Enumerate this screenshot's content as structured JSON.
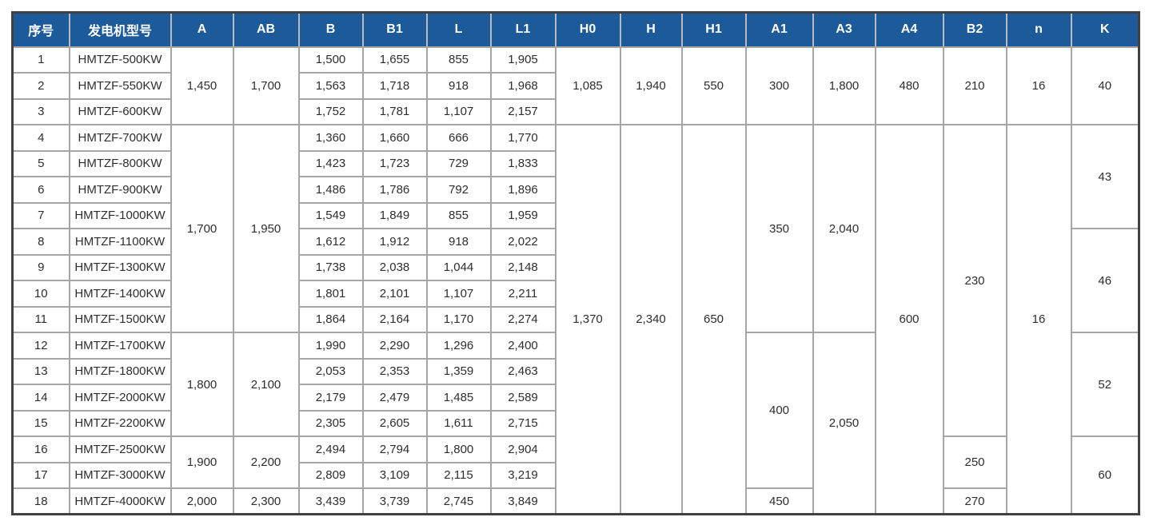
{
  "colors": {
    "header_bg": "#1d5a9a",
    "header_text": "#ffffff",
    "outer_border": "#414141",
    "grid_line": "#a6a6a6",
    "body_text": "#2e2e2e"
  },
  "table": {
    "header": {
      "columns": [
        "序号",
        "发电机型号",
        "A",
        "AB",
        "B",
        "B1",
        "L",
        "L1",
        "H0",
        "H",
        "H1",
        "A1",
        "A3",
        "A4",
        "B2",
        "n",
        "K"
      ]
    },
    "rows": [
      {
        "cells": [
          {
            "v": "1"
          },
          {
            "v": "HMTZF-500KW"
          },
          {
            "v": "1,450",
            "rs": 3
          },
          {
            "v": "1,700",
            "rs": 3
          },
          {
            "v": "1,500"
          },
          {
            "v": "1,655"
          },
          {
            "v": "855"
          },
          {
            "v": "1,905"
          },
          {
            "v": "1,085",
            "rs": 3
          },
          {
            "v": "1,940",
            "rs": 3
          },
          {
            "v": "550",
            "rs": 3
          },
          {
            "v": "300",
            "rs": 3
          },
          {
            "v": "1,800",
            "rs": 3
          },
          {
            "v": "480",
            "rs": 3
          },
          {
            "v": "210",
            "rs": 3
          },
          {
            "v": "16",
            "rs": 3
          },
          {
            "v": "40",
            "rs": 3
          }
        ]
      },
      {
        "cells": [
          {
            "v": "2"
          },
          {
            "v": "HMTZF-550KW"
          },
          {
            "v": "1,563"
          },
          {
            "v": "1,718"
          },
          {
            "v": "918"
          },
          {
            "v": "1,968"
          }
        ]
      },
      {
        "cells": [
          {
            "v": "3"
          },
          {
            "v": "HMTZF-600KW"
          },
          {
            "v": "1,752"
          },
          {
            "v": "1,781"
          },
          {
            "v": "1,107"
          },
          {
            "v": "2,157"
          }
        ]
      },
      {
        "cells": [
          {
            "v": "4"
          },
          {
            "v": "HMTZF-700KW"
          },
          {
            "v": "1,700",
            "rs": 8
          },
          {
            "v": "1,950",
            "rs": 8
          },
          {
            "v": "1,360"
          },
          {
            "v": "1,660"
          },
          {
            "v": "666"
          },
          {
            "v": "1,770"
          },
          {
            "v": "1,370",
            "rs": 15
          },
          {
            "v": "2,340",
            "rs": 15
          },
          {
            "v": "650",
            "rs": 15
          },
          {
            "v": "350",
            "rs": 8
          },
          {
            "v": "2,040",
            "rs": 8
          },
          {
            "v": "600",
            "rs": 15
          },
          {
            "v": "230",
            "rs": 12
          },
          {
            "v": "16",
            "rs": 15
          },
          {
            "v": "43",
            "rs": 4
          }
        ]
      },
      {
        "cells": [
          {
            "v": "5"
          },
          {
            "v": "HMTZF-800KW"
          },
          {
            "v": "1,423"
          },
          {
            "v": "1,723"
          },
          {
            "v": "729"
          },
          {
            "v": "1,833"
          }
        ]
      },
      {
        "cells": [
          {
            "v": "6"
          },
          {
            "v": "HMTZF-900KW"
          },
          {
            "v": "1,486"
          },
          {
            "v": "1,786"
          },
          {
            "v": "792"
          },
          {
            "v": "1,896"
          }
        ]
      },
      {
        "cells": [
          {
            "v": "7"
          },
          {
            "v": "HMTZF-1000KW"
          },
          {
            "v": "1,549"
          },
          {
            "v": "1,849"
          },
          {
            "v": "855"
          },
          {
            "v": "1,959"
          }
        ]
      },
      {
        "cells": [
          {
            "v": "8"
          },
          {
            "v": "HMTZF-1100KW"
          },
          {
            "v": "1,612"
          },
          {
            "v": "1,912"
          },
          {
            "v": "918"
          },
          {
            "v": "2,022"
          },
          {
            "v": "46",
            "rs": 4
          }
        ]
      },
      {
        "cells": [
          {
            "v": "9"
          },
          {
            "v": "HMTZF-1300KW"
          },
          {
            "v": "1,738"
          },
          {
            "v": "2,038"
          },
          {
            "v": "1,044"
          },
          {
            "v": "2,148"
          }
        ]
      },
      {
        "cells": [
          {
            "v": "10"
          },
          {
            "v": "HMTZF-1400KW"
          },
          {
            "v": "1,801"
          },
          {
            "v": "2,101"
          },
          {
            "v": "1,107"
          },
          {
            "v": "2,211"
          }
        ]
      },
      {
        "cells": [
          {
            "v": "11"
          },
          {
            "v": "HMTZF-1500KW"
          },
          {
            "v": "1,864"
          },
          {
            "v": "2,164"
          },
          {
            "v": "1,170"
          },
          {
            "v": "2,274"
          }
        ]
      },
      {
        "cells": [
          {
            "v": "12"
          },
          {
            "v": "HMTZF-1700KW"
          },
          {
            "v": "1,800",
            "rs": 4
          },
          {
            "v": "2,100",
            "rs": 4
          },
          {
            "v": "1,990"
          },
          {
            "v": "2,290"
          },
          {
            "v": "1,296"
          },
          {
            "v": "2,400"
          },
          {
            "v": "400",
            "rs": 6
          },
          {
            "v": "2,050",
            "rs": 7
          },
          {
            "v": "52",
            "rs": 4
          }
        ]
      },
      {
        "cells": [
          {
            "v": "13"
          },
          {
            "v": "HMTZF-1800KW"
          },
          {
            "v": "2,053"
          },
          {
            "v": "2,353"
          },
          {
            "v": "1,359"
          },
          {
            "v": "2,463"
          }
        ]
      },
      {
        "cells": [
          {
            "v": "14"
          },
          {
            "v": "HMTZF-2000KW"
          },
          {
            "v": "2,179"
          },
          {
            "v": "2,479"
          },
          {
            "v": "1,485"
          },
          {
            "v": "2,589"
          }
        ]
      },
      {
        "cells": [
          {
            "v": "15"
          },
          {
            "v": "HMTZF-2200KW"
          },
          {
            "v": "2,305"
          },
          {
            "v": "2,605"
          },
          {
            "v": "1,611"
          },
          {
            "v": "2,715"
          }
        ]
      },
      {
        "cells": [
          {
            "v": "16"
          },
          {
            "v": "HMTZF-2500KW"
          },
          {
            "v": "1,900",
            "rs": 2
          },
          {
            "v": "2,200",
            "rs": 2
          },
          {
            "v": "2,494"
          },
          {
            "v": "2,794"
          },
          {
            "v": "1,800"
          },
          {
            "v": "2,904"
          },
          {
            "v": "250",
            "rs": 2
          },
          {
            "v": "60",
            "rs": 3
          }
        ]
      },
      {
        "cells": [
          {
            "v": "17"
          },
          {
            "v": "HMTZF-3000KW"
          },
          {
            "v": "2,809"
          },
          {
            "v": "3,109"
          },
          {
            "v": "2,115"
          },
          {
            "v": "3,219"
          }
        ]
      },
      {
        "cells": [
          {
            "v": "18"
          },
          {
            "v": "HMTZF-4000KW"
          },
          {
            "v": "2,000"
          },
          {
            "v": "2,300"
          },
          {
            "v": "3,439"
          },
          {
            "v": "3,739"
          },
          {
            "v": "2,745"
          },
          {
            "v": "3,849"
          },
          {
            "v": "450"
          },
          {
            "v": "270"
          }
        ]
      }
    ]
  }
}
